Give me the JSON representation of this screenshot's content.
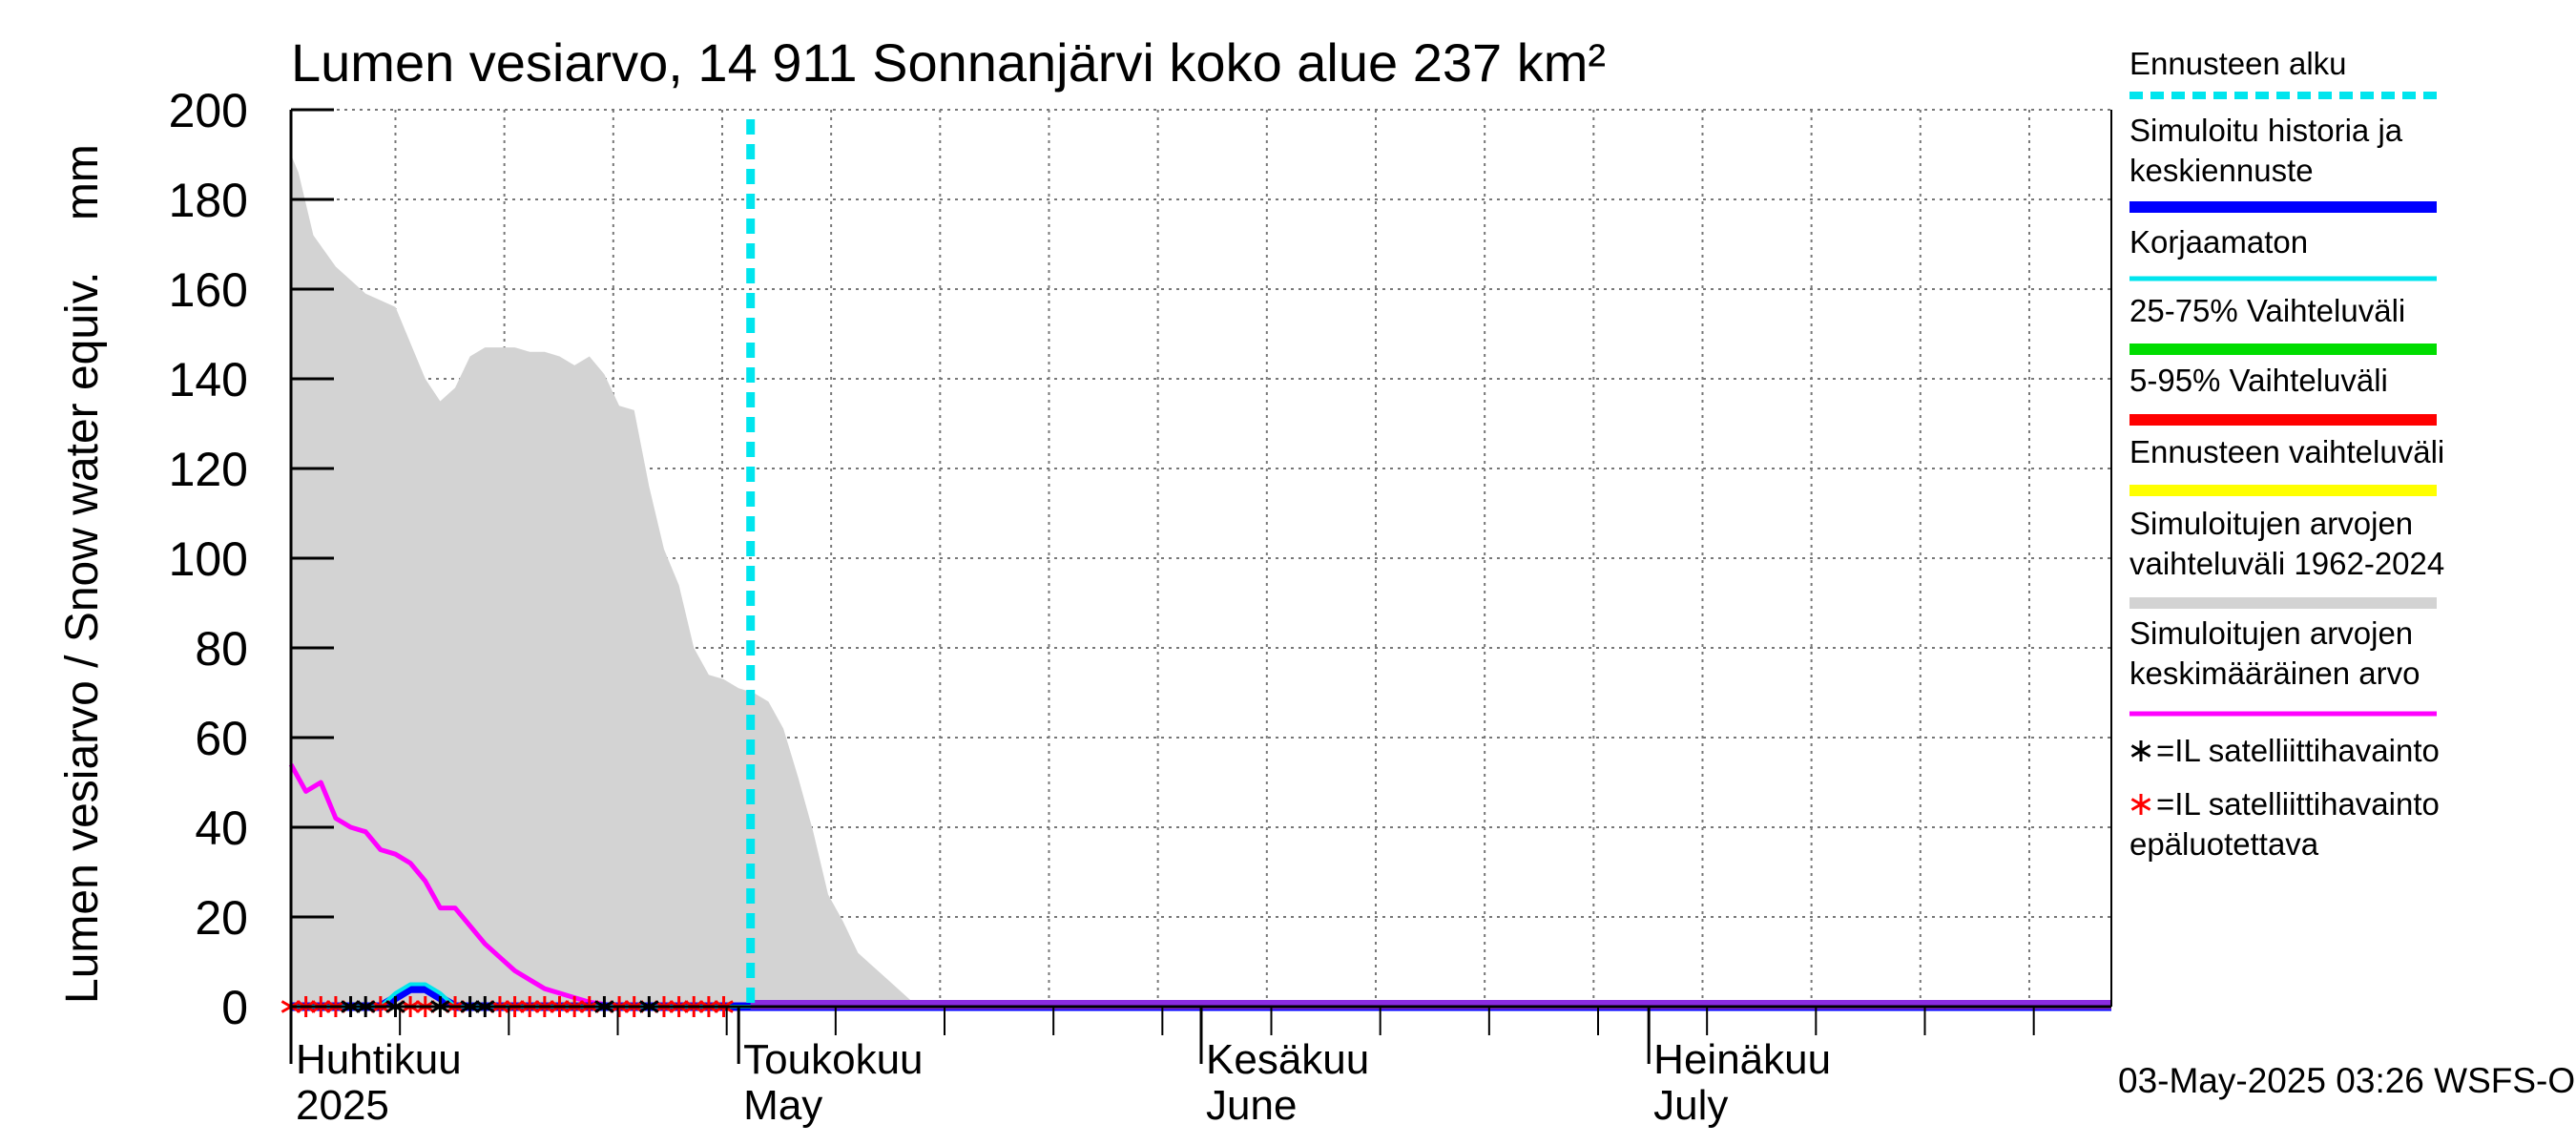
{
  "chart_data": {
    "type": "area",
    "title": "Lumen vesiarvo, 14 911 Sonnanjärvi koko alue 237 km²",
    "ylabel": "Lumen vesiarvo / Snow water equiv.    mm",
    "ylim": [
      0,
      200
    ],
    "yticks": [
      0,
      20,
      40,
      60,
      80,
      100,
      120,
      140,
      160,
      180,
      200
    ],
    "xlim": [
      0,
      122
    ],
    "month_labels": [
      {
        "fi": "Huhtikuu",
        "en": "2025",
        "day": 0
      },
      {
        "fi": "Toukokuu",
        "en": "May",
        "day": 30
      },
      {
        "fi": "Kesäkuu",
        "en": "June",
        "day": 61
      },
      {
        "fi": "Heinäkuu",
        "en": "July",
        "day": 91
      }
    ],
    "forecast_start_day": 30.8,
    "series": [
      {
        "name": "Simuloitujen arvojen vaihteluväli 1962-2024",
        "color": "#d3d3d3",
        "days": [
          0,
          0.5,
          1.5,
          3,
          5,
          7,
          9,
          10,
          11,
          12,
          13,
          14,
          15,
          16,
          17,
          18,
          19,
          20,
          21,
          22,
          23,
          24,
          25,
          26,
          27,
          28,
          29,
          30,
          31,
          32,
          33,
          34,
          35,
          36,
          37,
          38,
          39,
          40,
          41,
          42,
          43,
          44,
          45
        ],
        "values": [
          190,
          186,
          172,
          165,
          159,
          156,
          140,
          135,
          138,
          145,
          147,
          147,
          147,
          146,
          146,
          145,
          143,
          145,
          141,
          134,
          133,
          116,
          102,
          94,
          80,
          74,
          73,
          71,
          70,
          68,
          62,
          51,
          39,
          25,
          19,
          12,
          9,
          6,
          3,
          0,
          0,
          0,
          0
        ]
      },
      {
        "name": "Simuloitujen arvojen keskimääräinen arvo",
        "color": "#ff00ff",
        "days": [
          0,
          1,
          2,
          3,
          4,
          5,
          6,
          7,
          8,
          9,
          10,
          11,
          12,
          13,
          14,
          15,
          16,
          17,
          18,
          19,
          20,
          21,
          22
        ],
        "values": [
          54,
          48,
          50,
          42,
          40,
          39,
          35,
          34,
          32,
          28,
          22,
          22,
          18,
          14,
          11,
          8,
          6,
          4,
          3,
          2,
          1,
          0.5,
          0
        ]
      },
      {
        "name": "Simuloitu historia ja keskiennuste",
        "color": "#0000ff",
        "days": [
          0,
          6,
          7,
          8,
          9,
          10,
          11,
          12,
          122
        ],
        "values": [
          0,
          0,
          2,
          4,
          4,
          2,
          0,
          0,
          0
        ]
      },
      {
        "name": "Korjaamaton",
        "color": "#00e5ee",
        "days": [
          0,
          6,
          7,
          8,
          9,
          10,
          11,
          12,
          122
        ],
        "values": [
          0,
          0,
          3,
          5,
          5,
          3,
          0,
          0,
          0
        ]
      }
    ],
    "satellite_black_days": [
      4,
      5,
      7,
      10,
      12,
      13,
      21,
      24
    ],
    "satellite_red_days": [
      0,
      1,
      2,
      3,
      6,
      8,
      9,
      11,
      14,
      15,
      16,
      17,
      18,
      19,
      20,
      22,
      23,
      25,
      26,
      27,
      28,
      29
    ]
  },
  "legend": [
    {
      "label": "Ennusteen alku",
      "color": "#00e5ee",
      "style": "dashed"
    },
    {
      "label": "Simuloitu historia ja keskiennuste",
      "color": "#0000ff",
      "style": "solid"
    },
    {
      "label": "Korjaamaton",
      "color": "#00e5ee",
      "style": "solid"
    },
    {
      "label": "25-75% Vaihteluväli",
      "color": "#00dd00",
      "style": "solid"
    },
    {
      "label": "5-95% Vaihteluväli",
      "color": "#ff0000",
      "style": "solid"
    },
    {
      "label": "Ennusteen vaihteluväli",
      "color": "#ffff00",
      "style": "solid"
    },
    {
      "label": "Simuloitujen arvojen vaihteluväli 1962-2024",
      "color": "#d3d3d3",
      "style": "solid"
    },
    {
      "label": "Simuloitujen arvojen keskimääräinen arvo",
      "color": "#ff00ff",
      "style": "solid"
    },
    {
      "label": "=IL satelliittihavainto",
      "color": "#000000",
      "style": "marker"
    },
    {
      "label": "=IL satelliittihavainto epäluotettava",
      "color": "#ff0000",
      "style": "marker"
    }
  ],
  "footer": "03-May-2025 03:26 WSFS-O"
}
